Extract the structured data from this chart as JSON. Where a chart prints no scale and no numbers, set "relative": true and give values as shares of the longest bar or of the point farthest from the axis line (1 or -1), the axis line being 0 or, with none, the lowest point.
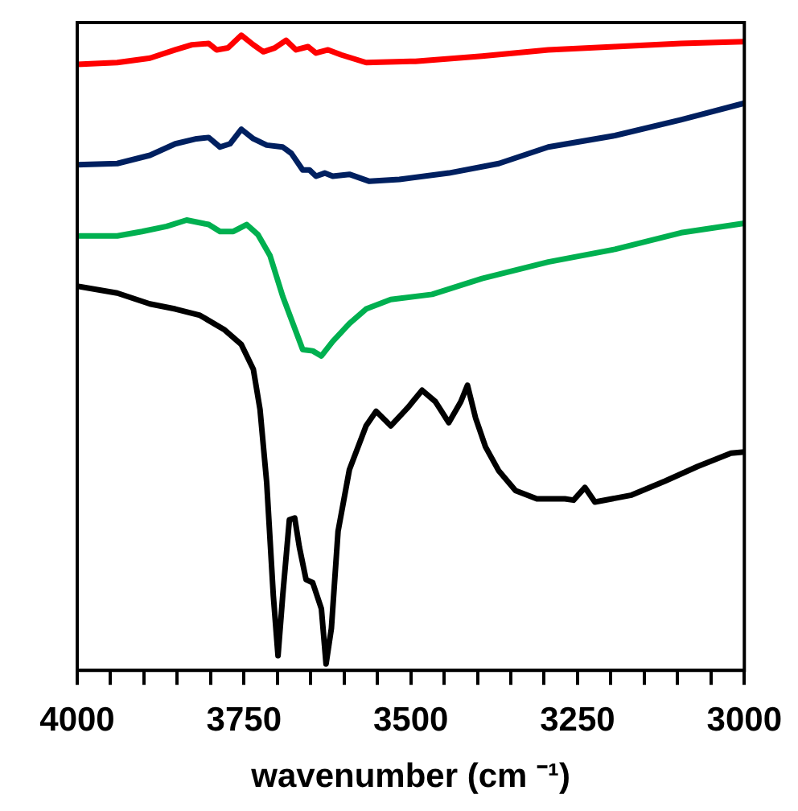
{
  "chart_data": {
    "type": "line",
    "relative": true,
    "xlabel": "wavenumber (cm ⁻¹)",
    "xlim": [
      4000,
      3000
    ],
    "xticks": [
      4000,
      {
        "value": 3950,
        "label": null
      },
      {
        "value": 3900,
        "label": null
      },
      {
        "value": 3850,
        "label": null
      },
      {
        "value": 3800,
        "label": null
      },
      3750,
      {
        "value": 3700,
        "label": null
      },
      {
        "value": 3650,
        "label": null
      },
      {
        "value": 3600,
        "label": null
      },
      {
        "value": 3550,
        "label": null
      },
      3500,
      {
        "value": 3450,
        "label": null
      },
      {
        "value": 3400,
        "label": null
      },
      {
        "value": 3350,
        "label": null
      },
      {
        "value": 3300,
        "label": null
      },
      3250,
      {
        "value": 3200,
        "label": null
      },
      {
        "value": 3150,
        "label": null
      },
      {
        "value": 3100,
        "label": null
      },
      {
        "value": 3050,
        "label": null
      },
      3000
    ],
    "grid": false,
    "legend": false,
    "marker": "none",
    "line_style": "solid",
    "series": [
      {
        "color": "#ff0000",
        "x": [
          4000,
          3940,
          3891,
          3853,
          3828,
          3803,
          3791,
          3774,
          3754,
          3736,
          3721,
          3704,
          3687,
          3672,
          3654,
          3642,
          3624,
          3604,
          3567,
          3493,
          3393,
          3294,
          3194,
          3095,
          3000
        ],
        "values": [
          0.954,
          0.957,
          0.964,
          0.977,
          0.985,
          0.987,
          0.977,
          0.98,
          1.0,
          0.985,
          0.974,
          0.98,
          0.992,
          0.977,
          0.982,
          0.972,
          0.977,
          0.969,
          0.957,
          0.959,
          0.967,
          0.977,
          0.982,
          0.987,
          0.99
        ]
      },
      {
        "color": "#002060",
        "x": [
          4000,
          3940,
          3891,
          3853,
          3821,
          3803,
          3786,
          3771,
          3754,
          3736,
          3716,
          3692,
          3679,
          3662,
          3652,
          3642,
          3629,
          3617,
          3592,
          3562,
          3517,
          3443,
          3368,
          3294,
          3194,
          3095,
          3000
        ],
        "values": [
          0.796,
          0.798,
          0.811,
          0.829,
          0.837,
          0.839,
          0.824,
          0.829,
          0.852,
          0.837,
          0.827,
          0.824,
          0.814,
          0.788,
          0.788,
          0.778,
          0.783,
          0.778,
          0.781,
          0.77,
          0.773,
          0.783,
          0.798,
          0.824,
          0.842,
          0.867,
          0.893
        ]
      },
      {
        "color": "#00b050",
        "x": [
          4000,
          3940,
          3903,
          3866,
          3836,
          3803,
          3786,
          3766,
          3746,
          3729,
          3711,
          3692,
          3662,
          3647,
          3634,
          3617,
          3592,
          3567,
          3530,
          3468,
          3393,
          3294,
          3194,
          3095,
          3000
        ],
        "values": [
          0.684,
          0.684,
          0.691,
          0.699,
          0.709,
          0.702,
          0.691,
          0.691,
          0.702,
          0.686,
          0.653,
          0.589,
          0.505,
          0.503,
          0.495,
          0.518,
          0.546,
          0.569,
          0.584,
          0.592,
          0.617,
          0.643,
          0.663,
          0.689,
          0.704
        ]
      },
      {
        "color": "#000000",
        "x": [
          4000,
          3940,
          3891,
          3853,
          3816,
          3779,
          3754,
          3736,
          3726,
          3716,
          3706,
          3699,
          3692,
          3682,
          3674,
          3667,
          3657,
          3647,
          3634,
          3627,
          3619,
          3609,
          3592,
          3567,
          3552,
          3530,
          3505,
          3483,
          3463,
          3443,
          3425,
          3415,
          3403,
          3388,
          3368,
          3343,
          3311,
          3269,
          3256,
          3239,
          3224,
          3169,
          3119,
          3070,
          3020,
          3000
        ],
        "values": [
          0.605,
          0.594,
          0.577,
          0.569,
          0.559,
          0.536,
          0.513,
          0.474,
          0.411,
          0.296,
          0.117,
          0.023,
          0.117,
          0.237,
          0.24,
          0.194,
          0.143,
          0.138,
          0.097,
          0.01,
          0.066,
          0.219,
          0.316,
          0.385,
          0.408,
          0.385,
          0.413,
          0.441,
          0.423,
          0.39,
          0.423,
          0.449,
          0.398,
          0.352,
          0.314,
          0.283,
          0.27,
          0.27,
          0.268,
          0.288,
          0.265,
          0.276,
          0.298,
          0.321,
          0.342,
          0.344
        ]
      }
    ]
  }
}
